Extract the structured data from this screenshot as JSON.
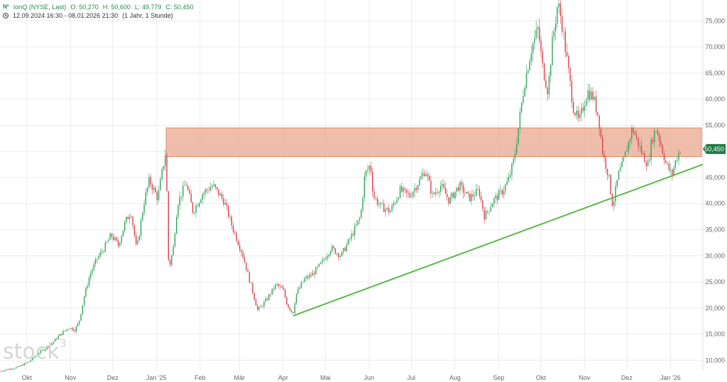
{
  "header": {
    "symbol_icon": "exchange-badge-icon",
    "symbol_badge": "Nº",
    "title": "IonQ (NYSE, Last)",
    "ohlc": {
      "open_label": "O:",
      "open": "50,270",
      "high_label": "H:",
      "high": "50,600",
      "low_label": "L:",
      "low": "49,779",
      "close_label": "C:",
      "close": "50,450"
    },
    "range_icon": "clock-icon",
    "range": "12.09.2024 16:30 - 08.01.2026 21:30",
    "interval": "(1 Jahr, 1 Stunde)"
  },
  "watermark": {
    "text": "stock",
    "sup": "3"
  },
  "colors": {
    "up": "#2fa35b",
    "down": "#d9404a",
    "trendline": "#5cb84a",
    "zone_fill": "#e9a88e",
    "zone_border": "#d98b6e",
    "price_tag": "#1e7d45",
    "grid": "#ececec"
  },
  "chart_data": {
    "type": "candlestick",
    "ylim": [
      8000,
      79000
    ],
    "y_ticks": [
      10000,
      15000,
      20000,
      25000,
      30000,
      35000,
      40000,
      45000,
      50000,
      55000,
      60000,
      65000,
      70000,
      75000
    ],
    "y_tick_labels": [
      "10,000",
      "15,000",
      "20,000",
      "25,000",
      "30,000",
      "35,000",
      "40,000",
      "45,000",
      "50,000",
      "55,000",
      "60,000",
      "65,000",
      "70,000",
      "75,000"
    ],
    "x_range": [
      "2024-09-12",
      "2026-01-24"
    ],
    "x_ticks": [
      "2024-10-01",
      "2024-11-01",
      "2024-12-01",
      "2025-01-01",
      "2025-02-01",
      "2025-03-01",
      "2025-04-01",
      "2025-05-01",
      "2025-06-01",
      "2025-07-01",
      "2025-08-01",
      "2025-09-01",
      "2025-10-01",
      "2025-11-01",
      "2025-12-01",
      "2026-01-01"
    ],
    "x_tick_labels": [
      "Okt",
      "Nov",
      "Dez",
      "Jan '25",
      "Feb",
      "Mär",
      "Apr",
      "Mai",
      "Jun",
      "Jul",
      "Aug",
      "Sep",
      "Okt",
      "Nov",
      "Dez",
      "Jan '26"
    ],
    "grid": true,
    "price_path": [
      [
        "2024-09-12",
        7900
      ],
      [
        "2024-09-25",
        8700
      ],
      [
        "2024-10-03",
        9800
      ],
      [
        "2024-10-10",
        11500
      ],
      [
        "2024-10-18",
        13000
      ],
      [
        "2024-10-24",
        14700
      ],
      [
        "2024-10-31",
        16300
      ],
      [
        "2024-11-04",
        15800
      ],
      [
        "2024-11-07",
        17200
      ],
      [
        "2024-11-11",
        22500
      ],
      [
        "2024-11-15",
        26500
      ],
      [
        "2024-11-20",
        29500
      ],
      [
        "2024-11-25",
        31500
      ],
      [
        "2024-11-30",
        34000
      ],
      [
        "2024-12-05",
        32000
      ],
      [
        "2024-12-10",
        36500
      ],
      [
        "2024-12-14",
        38500
      ],
      [
        "2024-12-18",
        31000
      ],
      [
        "2024-12-23",
        40000
      ],
      [
        "2024-12-27",
        44500
      ],
      [
        "2025-01-02",
        41000
      ],
      [
        "2025-01-06",
        47500
      ],
      [
        "2025-01-08",
        50500
      ],
      [
        "2025-01-09",
        32000
      ],
      [
        "2025-01-10",
        27500
      ],
      [
        "2025-01-13",
        31500
      ],
      [
        "2025-01-16",
        40000
      ],
      [
        "2025-01-22",
        44000
      ],
      [
        "2025-01-27",
        38500
      ],
      [
        "2025-02-03",
        42000
      ],
      [
        "2025-02-10",
        43500
      ],
      [
        "2025-02-18",
        40500
      ],
      [
        "2025-02-24",
        35500
      ],
      [
        "2025-03-03",
        30500
      ],
      [
        "2025-03-10",
        23500
      ],
      [
        "2025-03-14",
        19500
      ],
      [
        "2025-03-20",
        21500
      ],
      [
        "2025-03-27",
        24500
      ],
      [
        "2025-04-01",
        23500
      ],
      [
        "2025-04-04",
        20500
      ],
      [
        "2025-04-08",
        19000
      ],
      [
        "2025-04-10",
        22500
      ],
      [
        "2025-04-16",
        25500
      ],
      [
        "2025-04-22",
        26500
      ],
      [
        "2025-04-28",
        28500
      ],
      [
        "2025-05-05",
        31500
      ],
      [
        "2025-05-12",
        30000
      ],
      [
        "2025-05-19",
        33500
      ],
      [
        "2025-05-26",
        37500
      ],
      [
        "2025-05-29",
        45500
      ],
      [
        "2025-06-02",
        47500
      ],
      [
        "2025-06-04",
        41500
      ],
      [
        "2025-06-09",
        39500
      ],
      [
        "2025-06-16",
        38500
      ],
      [
        "2025-06-23",
        42500
      ],
      [
        "2025-06-30",
        41500
      ],
      [
        "2025-07-07",
        44500
      ],
      [
        "2025-07-11",
        46500
      ],
      [
        "2025-07-16",
        41500
      ],
      [
        "2025-07-22",
        43500
      ],
      [
        "2025-07-28",
        40500
      ],
      [
        "2025-08-04",
        43500
      ],
      [
        "2025-08-11",
        41000
      ],
      [
        "2025-08-18",
        42500
      ],
      [
        "2025-08-22",
        37500
      ],
      [
        "2025-08-28",
        40500
      ],
      [
        "2025-09-04",
        42500
      ],
      [
        "2025-09-08",
        44500
      ],
      [
        "2025-09-12",
        48500
      ],
      [
        "2025-09-16",
        56500
      ],
      [
        "2025-09-19",
        62500
      ],
      [
        "2025-09-24",
        69500
      ],
      [
        "2025-09-29",
        73500
      ],
      [
        "2025-10-02",
        66500
      ],
      [
        "2025-10-06",
        61500
      ],
      [
        "2025-10-09",
        70500
      ],
      [
        "2025-10-13",
        78500
      ],
      [
        "2025-10-16",
        74500
      ],
      [
        "2025-10-20",
        66500
      ],
      [
        "2025-10-24",
        58500
      ],
      [
        "2025-10-28",
        55500
      ],
      [
        "2025-11-03",
        61500
      ],
      [
        "2025-11-07",
        60500
      ],
      [
        "2025-11-11",
        56500
      ],
      [
        "2025-11-14",
        49500
      ],
      [
        "2025-11-18",
        45500
      ],
      [
        "2025-11-21",
        39500
      ],
      [
        "2025-11-25",
        45500
      ],
      [
        "2025-11-28",
        47500
      ],
      [
        "2025-12-02",
        51500
      ],
      [
        "2025-12-05",
        54500
      ],
      [
        "2025-12-09",
        51500
      ],
      [
        "2025-12-12",
        49500
      ],
      [
        "2025-12-16",
        47500
      ],
      [
        "2025-12-19",
        52500
      ],
      [
        "2025-12-22",
        54500
      ],
      [
        "2025-12-24",
        52500
      ],
      [
        "2025-12-29",
        47500
      ],
      [
        "2026-01-02",
        45500
      ],
      [
        "2026-01-05",
        48500
      ],
      [
        "2026-01-08",
        50450
      ]
    ],
    "annotations": [
      {
        "type": "zone",
        "x_start": "2025-01-08",
        "x_end": "2026-01-23",
        "y_low": 49000,
        "y_high": 54500
      },
      {
        "type": "trendline",
        "x_start": "2025-04-08",
        "y_start": 18500,
        "x_end": "2026-01-24",
        "y_end": 47500
      }
    ],
    "last_price": 50450,
    "last_price_label": "50,450"
  }
}
